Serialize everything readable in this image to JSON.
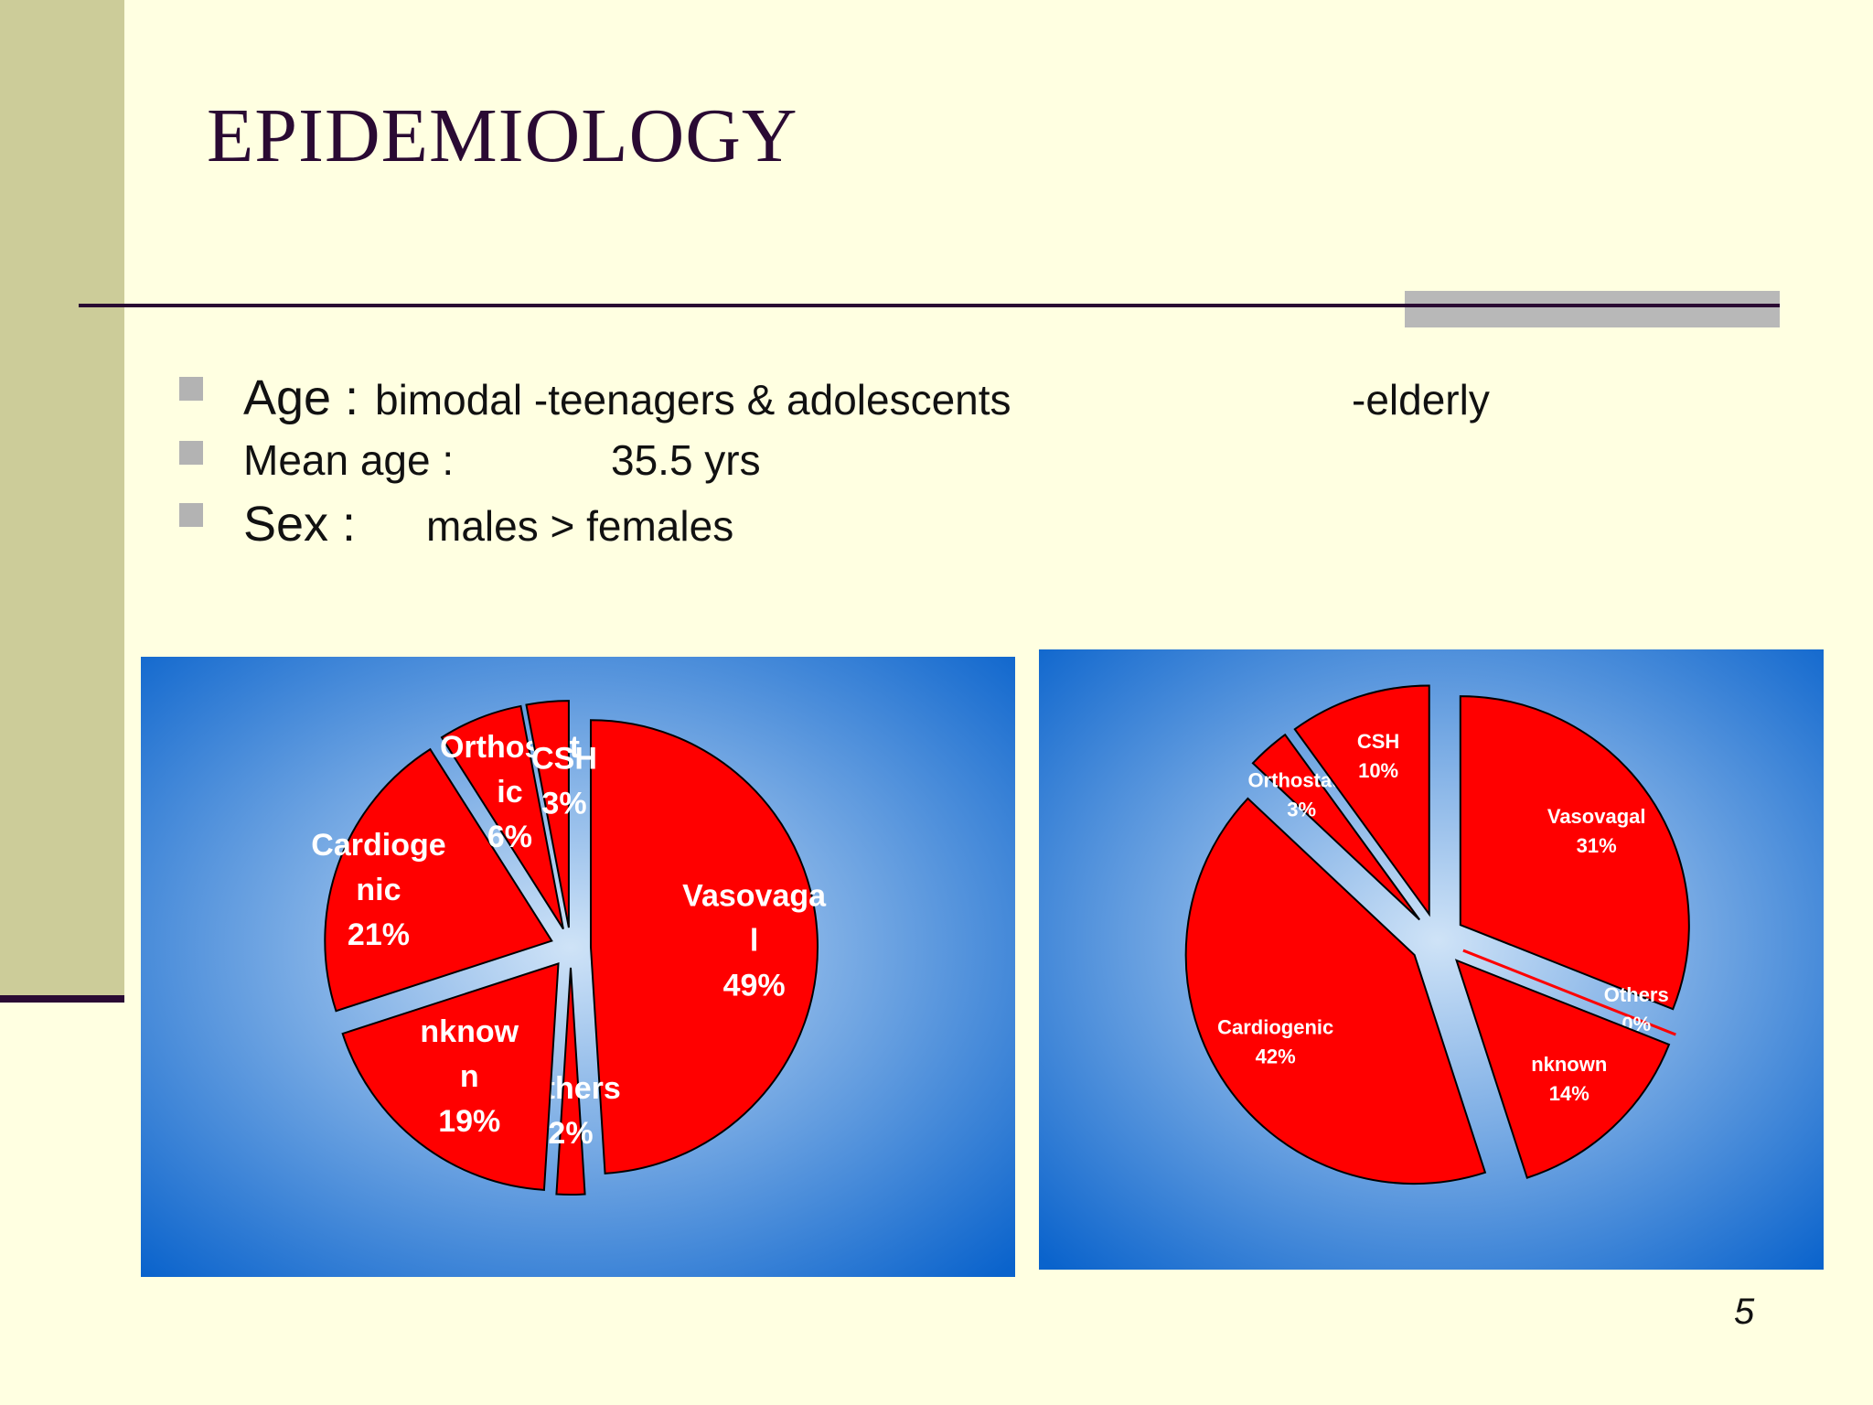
{
  "slide": {
    "title": "EPIDEMIOLOGY",
    "page_number": "5"
  },
  "bullets": [
    {
      "label": "Age :",
      "value": "bimodal -teenagers & adolescents",
      "extra": "-elderly"
    },
    {
      "label": "Mean age :",
      "value": "35.5 yrs"
    },
    {
      "label": "Sex :",
      "value": "males > females"
    }
  ],
  "colors": {
    "background": "#ffffe1",
    "sidebar": "#cccc99",
    "accent_dark": "#2a0a33",
    "slice": "#ff0000",
    "panel_edge": "#0a63cc",
    "panel_center": "#cfe3f7"
  },
  "chart_data": [
    {
      "type": "pie",
      "exploded": true,
      "categories": [
        "Vasovaga l",
        "Others",
        "nknow n",
        "Cardioge nic",
        "Orthostat ic",
        "CSH"
      ],
      "values": [
        49,
        2,
        19,
        21,
        6,
        3
      ],
      "data_labels": [
        "49%",
        "2%",
        "19%",
        "21%",
        "6%",
        "3%"
      ]
    },
    {
      "type": "pie",
      "exploded": true,
      "categories": [
        "Vasovagal",
        "Others",
        "nknown",
        "Cardiogenic",
        "Orthostatic",
        "CSH"
      ],
      "values": [
        31,
        0,
        14,
        42,
        3,
        10
      ],
      "data_labels": [
        "31%",
        "0%",
        "14%",
        "42%",
        "3%",
        "10%"
      ]
    }
  ]
}
